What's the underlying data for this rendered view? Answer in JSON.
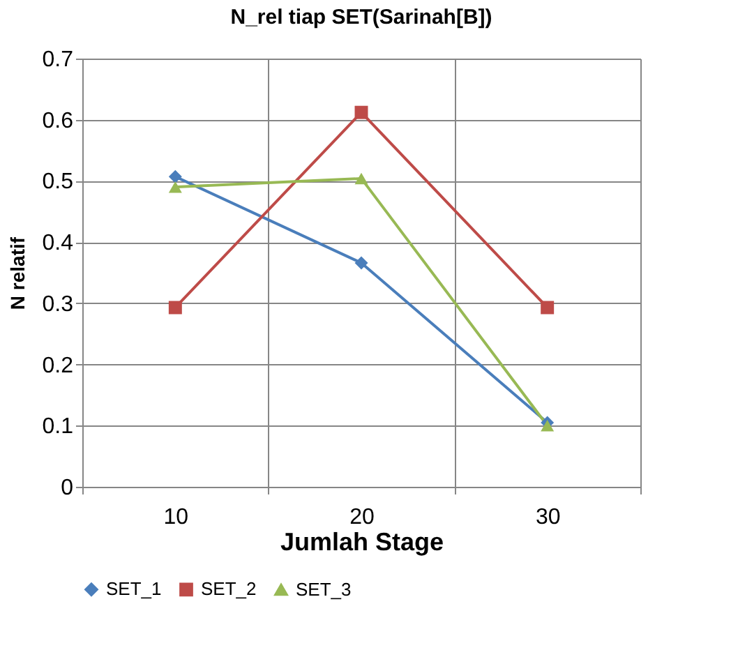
{
  "chart_data": {
    "type": "line",
    "title": "N_rel tiap SET(Sarinah[B])",
    "xlabel": "Jumlah Stage",
    "ylabel": "N relatif",
    "categories": [
      "10",
      "20",
      "30"
    ],
    "ylim": [
      0,
      0.7
    ],
    "yticks": [
      0,
      0.1,
      0.2,
      0.3,
      0.4,
      0.5,
      0.6,
      0.7
    ],
    "grid": true,
    "legend": "bottom",
    "line_style": "solid",
    "series": [
      {
        "name": "SET_1",
        "color": "#4a7ebb",
        "marker": "diamond",
        "values": [
          0.507,
          0.366,
          0.105
        ]
      },
      {
        "name": "SET_2",
        "color": "#be4b48",
        "marker": "square",
        "values": [
          0.293,
          0.612,
          0.293
        ]
      },
      {
        "name": "SET_3",
        "color": "#98b954",
        "marker": "triangle",
        "values": [
          0.49,
          0.504,
          0.1
        ]
      }
    ]
  }
}
